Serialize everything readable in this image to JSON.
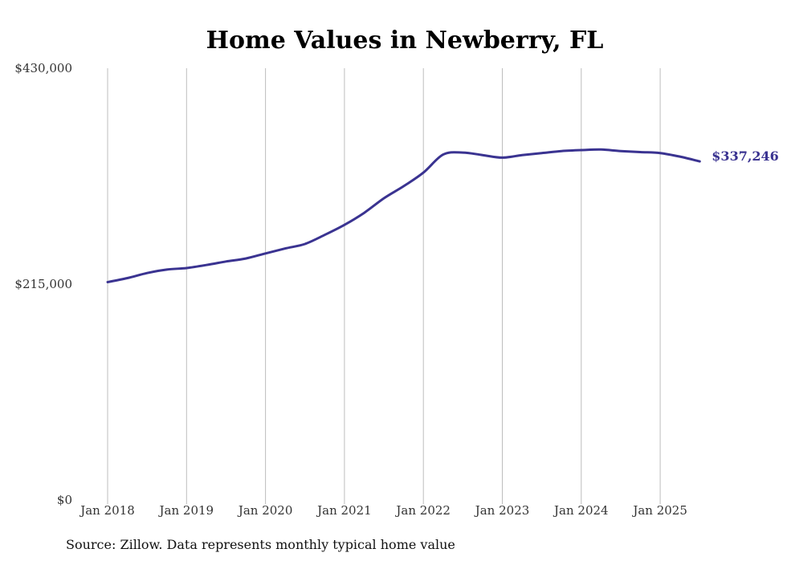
{
  "chart_data": {
    "type": "line",
    "title": "Home Values in Newberry, FL",
    "xlabel": "",
    "ylabel": "",
    "ylim": [
      0,
      430000
    ],
    "y_ticks": [
      0,
      215000,
      430000
    ],
    "y_tick_labels": [
      "$0",
      "$215,000",
      "$430,000"
    ],
    "x_ticks": [
      "2018-01",
      "2019-01",
      "2020-01",
      "2021-01",
      "2022-01",
      "2023-01",
      "2024-01",
      "2025-01"
    ],
    "x_tick_labels": [
      "Jan 2018",
      "Jan 2019",
      "Jan 2020",
      "Jan 2021",
      "Jan 2022",
      "Jan 2023",
      "Jan 2024",
      "Jan 2025"
    ],
    "xlim": [
      "2018-01",
      "2025-07"
    ],
    "grid": "vertical",
    "color": "#3a3391",
    "end_label": "$337,246",
    "source": "Source: Zillow. Data represents monthly typical home value",
    "series": [
      {
        "x": [
          "2018-01",
          "2018-04",
          "2018-07",
          "2018-10",
          "2019-01",
          "2019-04",
          "2019-07",
          "2019-10",
          "2020-01",
          "2020-04",
          "2020-07",
          "2020-10",
          "2021-01",
          "2021-04",
          "2021-07",
          "2021-10",
          "2022-01",
          "2022-04",
          "2022-07",
          "2022-10",
          "2023-01",
          "2023-04",
          "2023-07",
          "2023-10",
          "2024-01",
          "2024-04",
          "2024-07",
          "2024-10",
          "2025-01",
          "2025-04",
          "2025-07"
        ],
        "values": [
          217000,
          221000,
          226000,
          229500,
          231000,
          234000,
          237500,
          240500,
          245500,
          250500,
          255000,
          264000,
          274000,
          286000,
          300500,
          312500,
          326000,
          344000,
          346000,
          343500,
          341000,
          343500,
          345500,
          347500,
          348500,
          349000,
          347500,
          346500,
          345500,
          342000,
          337246
        ]
      }
    ]
  }
}
